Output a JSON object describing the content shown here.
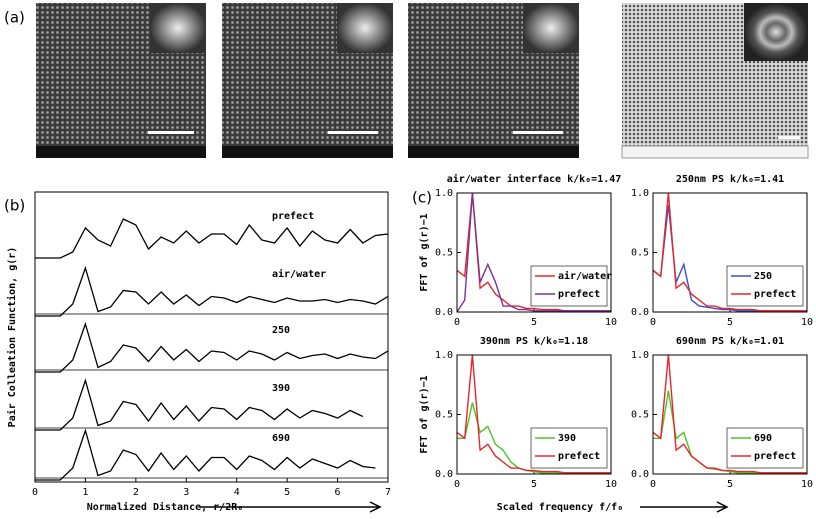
{
  "panel_labels": [
    "(a)",
    "(b)",
    "(c)"
  ],
  "panel_c_xlabel": "Scaled frequency f/f₀",
  "chart_data": [
    {
      "type": "stacked-line",
      "ylabel": "Pair Colleation Function, g(r)",
      "xlabel": "Normalized Distance, r/2R₀",
      "xlim": [
        0,
        7
      ],
      "xticks": [
        0,
        1,
        2,
        3,
        4,
        5,
        6,
        7
      ],
      "x": [
        0,
        0.25,
        0.5,
        0.75,
        1,
        1.25,
        1.5,
        1.75,
        2,
        2.25,
        2.5,
        2.75,
        3,
        3.25,
        3.5,
        3.75,
        4,
        4.25,
        4.5,
        4.75,
        5,
        5.25,
        5.5,
        5.75,
        6,
        6.25,
        6.5,
        6.75,
        7
      ],
      "series": [
        {
          "name": "prefect",
          "color": "#000000",
          "values": [
            0,
            0,
            0,
            0.4,
            2.0,
            1.2,
            0.8,
            2.6,
            2.2,
            0.6,
            1.4,
            1.0,
            1.8,
            1.0,
            1.6,
            1.6,
            0.9,
            2.2,
            1.2,
            1.0,
            2.0,
            0.8,
            1.8,
            1.2,
            1.0,
            1.9,
            1.0,
            1.5,
            1.6
          ]
        },
        {
          "name": "air/water",
          "color": "#000000",
          "hline": 1,
          "values": [
            0,
            0,
            0,
            0.8,
            3.2,
            0.3,
            0.6,
            1.7,
            1.6,
            0.8,
            1.6,
            0.8,
            1.4,
            0.7,
            1.3,
            1.2,
            0.9,
            1.3,
            1.1,
            0.9,
            1.2,
            1.0,
            1.0,
            1.1,
            0.9,
            1.1,
            1.0,
            0.8,
            1.3
          ]
        },
        {
          "name": "250",
          "color": "#000000",
          "hline": 1,
          "values": [
            0,
            0,
            0,
            0.8,
            3.2,
            0.3,
            0.7,
            1.8,
            1.6,
            0.7,
            1.7,
            0.8,
            1.5,
            0.7,
            1.4,
            1.3,
            0.8,
            1.4,
            1.2,
            0.8,
            1.3,
            0.9,
            1.1,
            1.2,
            0.9,
            1.2,
            1.0,
            0.9,
            1.4
          ]
        },
        {
          "name": "390",
          "color": "#000000",
          "hline": 1,
          "values": [
            0,
            0,
            0,
            0.8,
            3.3,
            0.3,
            0.6,
            1.9,
            1.7,
            0.6,
            1.8,
            0.7,
            1.6,
            0.6,
            1.5,
            1.4,
            0.7,
            1.5,
            1.3,
            0.7,
            1.4,
            0.8,
            1.3,
            1.1,
            0.8,
            1.3,
            0.9,
            null,
            null
          ]
        },
        {
          "name": "690",
          "color": "#000000",
          "hline": 1,
          "values": [
            0,
            0,
            0,
            0.8,
            3.3,
            0.3,
            0.6,
            2.0,
            1.7,
            0.6,
            1.8,
            0.7,
            1.6,
            0.6,
            1.5,
            1.5,
            0.7,
            1.6,
            1.3,
            0.7,
            1.5,
            0.8,
            1.4,
            1.1,
            0.8,
            1.3,
            0.9,
            0.8,
            null
          ]
        }
      ]
    },
    {
      "type": "line",
      "title": "air/water interface k/k₀=1.47",
      "ylabel": "FFT of g(r)−1",
      "xlim": [
        0,
        10
      ],
      "xticks": [
        0,
        5,
        10
      ],
      "ylim": [
        0,
        1
      ],
      "yticks": [
        {
          "value": 0,
          "label": "0.0"
        },
        {
          "value": 0.5,
          "label": "0.5"
        },
        {
          "value": 1,
          "label": "1.0"
        }
      ],
      "x": [
        0,
        0.5,
        1,
        1.5,
        2,
        2.5,
        3,
        3.5,
        4,
        4.5,
        5,
        5.5,
        6,
        6.5,
        7,
        7.5,
        8,
        8.5,
        9,
        9.5,
        10
      ],
      "series": [
        {
          "name": "air/water",
          "color": "#e8262a",
          "values": [
            0.35,
            0.3,
            1.0,
            0.2,
            0.25,
            0.15,
            0.1,
            0.05,
            0.05,
            0.03,
            0.03,
            0.02,
            0.02,
            0.02,
            0.01,
            0.01,
            0.01,
            0.01,
            0.01,
            0.01,
            0.01
          ]
        },
        {
          "name": "prefect",
          "color": "#7b3294",
          "values": [
            0.0,
            0.1,
            1.0,
            0.25,
            0.4,
            0.25,
            0.05,
            0.05,
            0.02,
            0.02,
            0.01,
            0.01,
            0.01,
            0.01,
            0.01,
            0.01,
            0.01,
            0.01,
            0.01,
            0.01,
            0.01
          ]
        }
      ]
    },
    {
      "type": "line",
      "title": "250nm PS k/k₀=1.41",
      "xlim": [
        0,
        10
      ],
      "xticks": [
        0,
        5,
        10
      ],
      "ylim": [
        0,
        1
      ],
      "yticks": [
        {
          "value": 0,
          "label": "0.0"
        },
        {
          "value": 0.5,
          "label": "0.5"
        },
        {
          "value": 1,
          "label": "1.0"
        }
      ],
      "x": [
        0,
        0.5,
        1,
        1.5,
        2,
        2.5,
        3,
        3.5,
        4,
        4.5,
        5,
        5.5,
        6,
        6.5,
        7,
        7.5,
        8,
        8.5,
        9,
        9.5,
        10
      ],
      "series": [
        {
          "name": "250",
          "color": "#3a4fd0",
          "values": [
            0.35,
            0.3,
            0.9,
            0.25,
            0.4,
            0.1,
            0.05,
            0.04,
            0.03,
            0.02,
            0.02,
            0.01,
            0.01,
            0.01,
            0.01,
            0.01,
            0.01,
            0.01,
            0.01,
            0.01,
            0.01
          ]
        },
        {
          "name": "prefect",
          "color": "#e8262a",
          "values": [
            0.35,
            0.3,
            1.0,
            0.2,
            0.25,
            0.15,
            0.1,
            0.05,
            0.05,
            0.03,
            0.03,
            0.02,
            0.02,
            0.02,
            0.01,
            0.01,
            0.01,
            0.01,
            0.01,
            0.01,
            0.01
          ]
        }
      ]
    },
    {
      "type": "line",
      "title": "390nm PS k/k₀=1.18",
      "ylabel": "FFT of g(r)−1",
      "xlim": [
        0,
        10
      ],
      "xticks": [
        0,
        5,
        10
      ],
      "ylim": [
        0,
        1
      ],
      "yticks": [
        {
          "value": 0,
          "label": "0.0"
        },
        {
          "value": 0.5,
          "label": "0.5"
        },
        {
          "value": 1,
          "label": "1.0"
        }
      ],
      "x": [
        0,
        0.5,
        1,
        1.5,
        2,
        2.5,
        3,
        3.5,
        4,
        4.5,
        5,
        5.5,
        6,
        6.5,
        7,
        7.5,
        8,
        8.5,
        9,
        9.5,
        10
      ],
      "series": [
        {
          "name": "390",
          "color": "#4ec22a",
          "values": [
            0.3,
            0.3,
            0.6,
            0.35,
            0.4,
            0.25,
            0.2,
            0.1,
            0.05,
            0.03,
            0.02,
            0.01,
            0.01,
            0.01,
            0.01,
            0.01,
            0.01,
            0.01,
            0.01,
            0.01,
            0.01
          ]
        },
        {
          "name": "prefect",
          "color": "#e8262a",
          "values": [
            0.35,
            0.3,
            1.0,
            0.2,
            0.25,
            0.15,
            0.1,
            0.05,
            0.05,
            0.03,
            0.03,
            0.02,
            0.02,
            0.02,
            0.01,
            0.01,
            0.01,
            0.01,
            0.01,
            0.01,
            0.01
          ]
        }
      ]
    },
    {
      "type": "line",
      "title": "690nm PS k/k₀=1.01",
      "xlim": [
        0,
        10
      ],
      "xticks": [
        0,
        5,
        10
      ],
      "ylim": [
        0,
        1
      ],
      "yticks": [
        {
          "value": 0,
          "label": "0.0"
        },
        {
          "value": 0.5,
          "label": "0.5"
        },
        {
          "value": 1,
          "label": "1.0"
        }
      ],
      "x": [
        0,
        0.5,
        1,
        1.5,
        2,
        2.5,
        3,
        3.5,
        4,
        4.5,
        5,
        5.5,
        6,
        6.5,
        7,
        7.5,
        8,
        8.5,
        9,
        9.5,
        10
      ],
      "series": [
        {
          "name": "690",
          "color": "#4ec22a",
          "values": [
            0.3,
            0.3,
            0.7,
            0.3,
            0.35,
            0.15,
            0.1,
            0.05,
            0.04,
            0.03,
            0.02,
            0.01,
            0.01,
            0.01,
            0.01,
            0.01,
            0.01,
            0.01,
            0.01,
            0.01,
            0.01
          ]
        },
        {
          "name": "prefect",
          "color": "#e8262a",
          "values": [
            0.35,
            0.3,
            1.0,
            0.2,
            0.25,
            0.15,
            0.1,
            0.05,
            0.05,
            0.03,
            0.03,
            0.02,
            0.02,
            0.02,
            0.01,
            0.01,
            0.01,
            0.01,
            0.01,
            0.01,
            0.01
          ]
        }
      ]
    }
  ]
}
